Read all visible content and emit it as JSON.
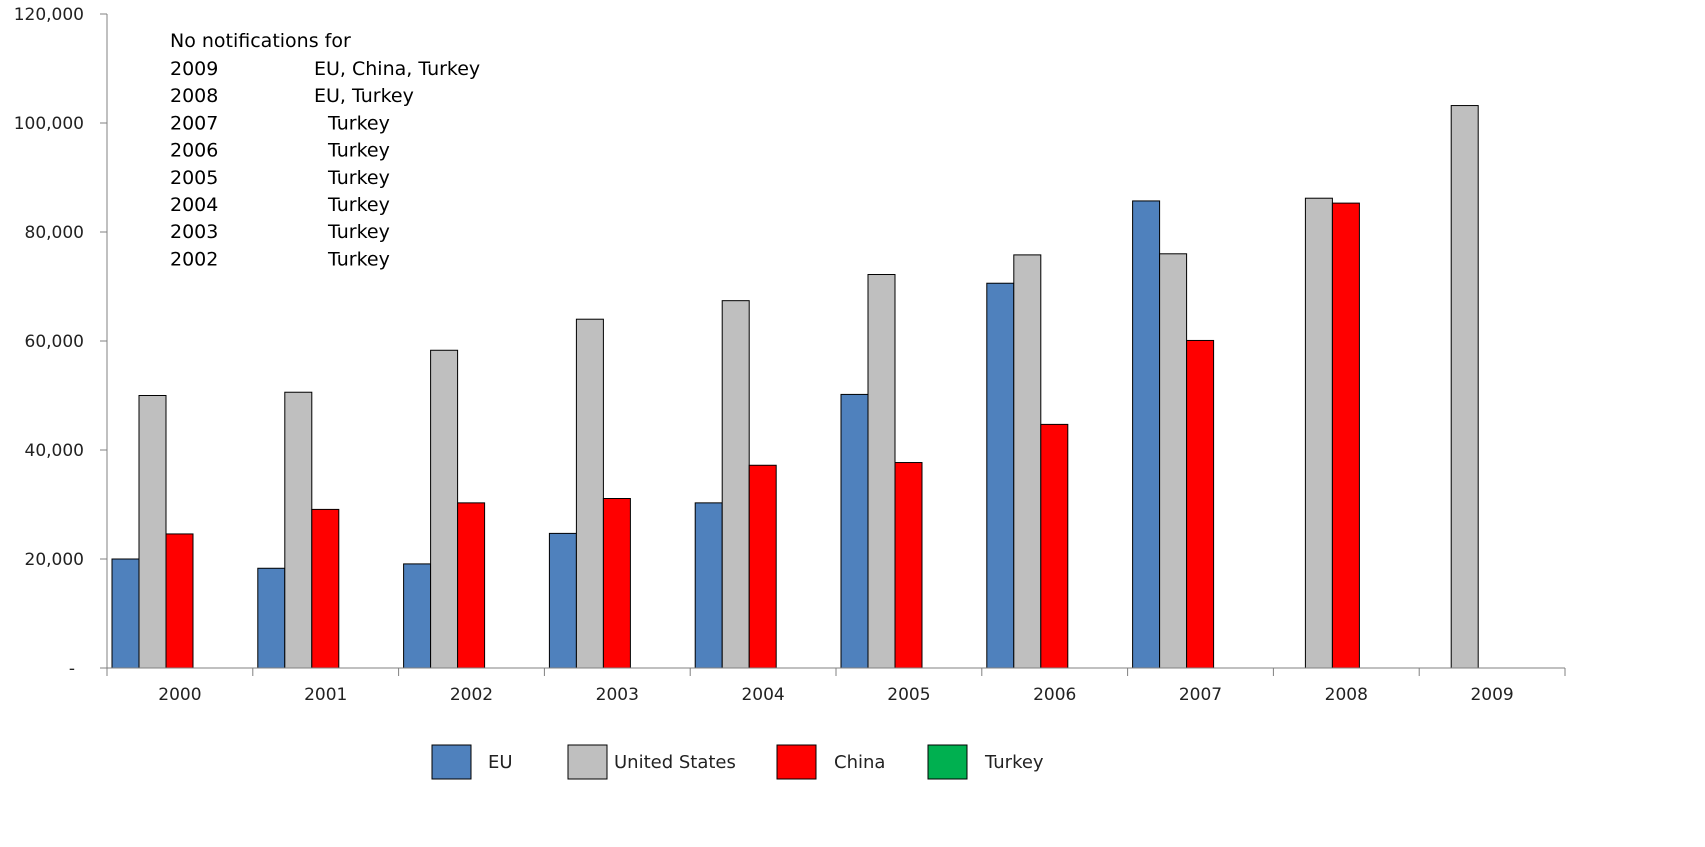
{
  "chart_data": {
    "type": "bar",
    "categories": [
      "2000",
      "2001",
      "2002",
      "2003",
      "2004",
      "2005",
      "2006",
      "2007",
      "2008",
      "2009"
    ],
    "series": [
      {
        "name": "EU",
        "color": "#4F81BD",
        "values": [
          20000,
          18300,
          19100,
          24700,
          30300,
          50200,
          70600,
          85700,
          null,
          null
        ]
      },
      {
        "name": "United States",
        "color": "#BFBFBF",
        "values": [
          50000,
          50600,
          58300,
          64000,
          67400,
          72200,
          75800,
          76000,
          86200,
          103200
        ]
      },
      {
        "name": "China",
        "color": "#FF0000",
        "values": [
          24600,
          29100,
          30300,
          31100,
          37200,
          37700,
          44700,
          60100,
          85300,
          null
        ]
      },
      {
        "name": "Turkey",
        "color": "#00B050",
        "values": [
          null,
          null,
          null,
          null,
          null,
          null,
          null,
          null,
          null,
          null
        ]
      }
    ],
    "ylim": [
      0,
      120000
    ],
    "yticks": [
      0,
      20000,
      40000,
      60000,
      80000,
      100000,
      120000
    ],
    "ytick_labels": [
      "-",
      "20,000",
      "40,000",
      "60,000",
      "80,000",
      "100,000",
      "120,000"
    ],
    "grid": false,
    "legend": "bottom",
    "annotation": {
      "title": "No notifications for",
      "rows": [
        {
          "year": "2009",
          "countries": "EU, China, Turkey"
        },
        {
          "year": "2008",
          "countries": "EU, Turkey"
        },
        {
          "year": "2007",
          "countries": "Turkey"
        },
        {
          "year": "2006",
          "countries": "Turkey"
        },
        {
          "year": "2005",
          "countries": "Turkey"
        },
        {
          "year": "2004",
          "countries": "Turkey"
        },
        {
          "year": "2003",
          "countries": "Turkey"
        },
        {
          "year": "2002",
          "countries": "Turkey"
        }
      ]
    }
  }
}
